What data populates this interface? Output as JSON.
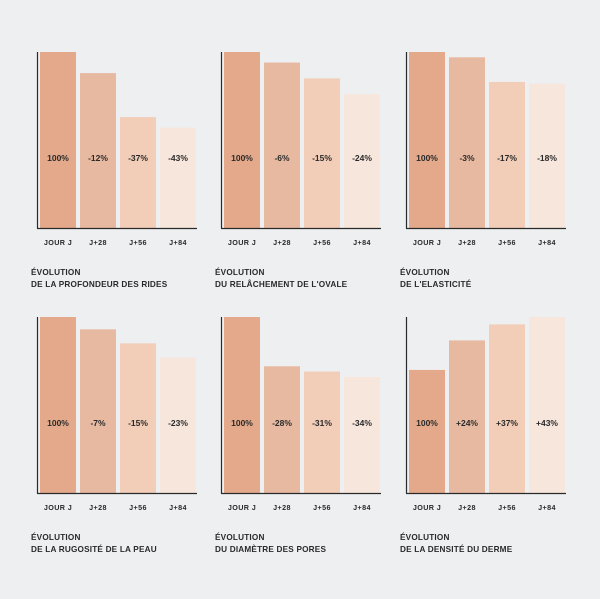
{
  "colors": [
    "#e3a98a",
    "#e8b9a1",
    "#f2cdb7",
    "#f7e6dc"
  ],
  "chart_data": [
    {
      "type": "bar",
      "categories": [
        "JOUR J",
        "J+28",
        "J+56",
        "J+84"
      ],
      "values": [
        100,
        88,
        63,
        57
      ],
      "labels": [
        "100%",
        "-12%",
        "-37%",
        "-43%"
      ],
      "title_line1": "ÉVOLUTION",
      "title_line2": "DE LA PROFONDEUR DES RIDES",
      "ylim": [
        0,
        100
      ]
    },
    {
      "type": "bar",
      "categories": [
        "JOUR J",
        "J+28",
        "J+56",
        "J+84"
      ],
      "values": [
        100,
        94,
        85,
        76
      ],
      "labels": [
        "100%",
        "-6%",
        "-15%",
        "-24%"
      ],
      "title_line1": "ÉVOLUTION",
      "title_line2": "DU RELÂCHEMENT DE L'OVALE",
      "ylim": [
        0,
        100
      ]
    },
    {
      "type": "bar",
      "categories": [
        "JOUR J",
        "J+28",
        "J+56",
        "J+84"
      ],
      "values": [
        100,
        97,
        83,
        82
      ],
      "labels": [
        "100%",
        "-3%",
        "-17%",
        "-18%"
      ],
      "title_line1": "ÉVOLUTION",
      "title_line2": "DE L'ELASTICITÉ",
      "ylim": [
        0,
        100
      ]
    },
    {
      "type": "bar",
      "categories": [
        "JOUR J",
        "J+28",
        "J+56",
        "J+84"
      ],
      "values": [
        100,
        93,
        85,
        77
      ],
      "labels": [
        "100%",
        "-7%",
        "-15%",
        "-23%"
      ],
      "title_line1": "ÉVOLUTION",
      "title_line2": "DE LA RUGOSITÉ DE LA PEAU",
      "ylim": [
        0,
        100
      ]
    },
    {
      "type": "bar",
      "categories": [
        "JOUR J",
        "J+28",
        "J+56",
        "J+84"
      ],
      "values": [
        100,
        72,
        69,
        66
      ],
      "labels": [
        "100%",
        "-28%",
        "-31%",
        "-34%"
      ],
      "title_line1": "ÉVOLUTION",
      "title_line2": "DU DIAMÈTRE DES PORES",
      "ylim": [
        0,
        100
      ]
    },
    {
      "type": "bar",
      "categories": [
        "JOUR J",
        "J+28",
        "J+56",
        "J+84"
      ],
      "values": [
        100,
        124,
        137,
        143
      ],
      "labels": [
        "100%",
        "+24%",
        "+37%",
        "+43%"
      ],
      "title_line1": "ÉVOLUTION",
      "title_line2": "DE LA DENSITÉ DU DERME",
      "ylim": [
        0,
        143
      ]
    }
  ]
}
